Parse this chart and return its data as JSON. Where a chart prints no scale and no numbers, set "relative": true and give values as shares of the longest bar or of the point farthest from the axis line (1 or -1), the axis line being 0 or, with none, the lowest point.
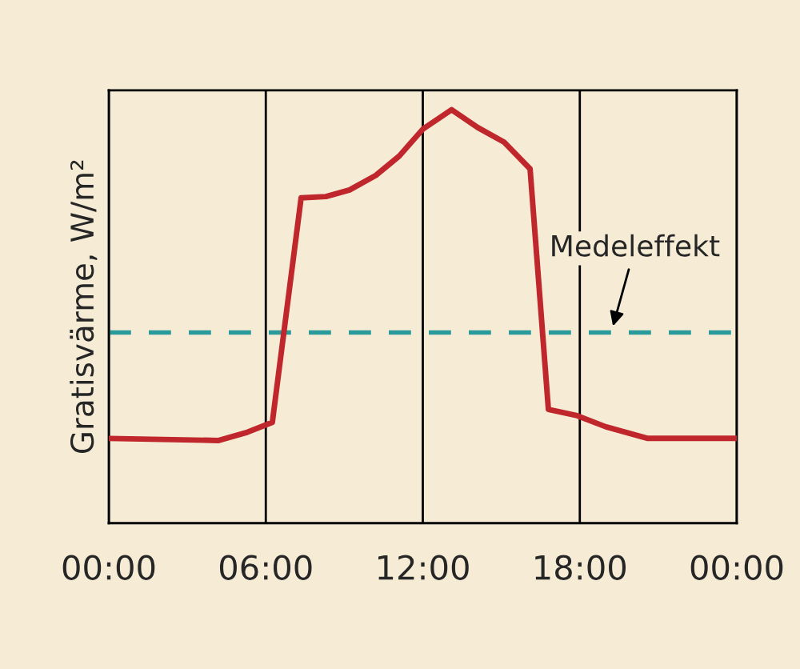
{
  "chart_data": {
    "type": "line",
    "relative": true,
    "ylabel": "Gratisvärme, W/m²",
    "x": [
      0,
      4.2,
      5.3,
      6.25,
      7.35,
      8.3,
      9.2,
      10.2,
      11.1,
      12,
      13.1,
      14.1,
      15.1,
      16.1,
      16.8,
      17.9,
      19,
      20.6,
      24
    ],
    "series": [
      {
        "color": "#c0272d",
        "values": [
          0.205,
          0.2,
          0.22,
          0.244,
          0.787,
          0.79,
          0.806,
          0.841,
          0.888,
          0.953,
          1,
          0.957,
          0.922,
          0.857,
          0.275,
          0.26,
          0.233,
          0.205,
          0.205
        ]
      }
    ],
    "xlim": [
      0,
      24
    ],
    "xticks": [
      {
        "value": 0,
        "label": "00:00"
      },
      {
        "value": 6,
        "label": "06:00"
      },
      {
        "value": 12,
        "label": "12:00"
      },
      {
        "value": 18,
        "label": "18:00"
      },
      {
        "value": 24,
        "label": "00:00"
      }
    ],
    "grid": "x",
    "marker": "none",
    "line_style": "solid",
    "tick_labels": "x",
    "ref_lines": [
      {
        "axis": "y",
        "value": 0.461,
        "color": "#2a9a9a",
        "line_style": "dashed"
      }
    ],
    "annotations": [
      {
        "text": "Medeleffekt",
        "x": 19.2,
        "y": 0.461
      }
    ]
  }
}
